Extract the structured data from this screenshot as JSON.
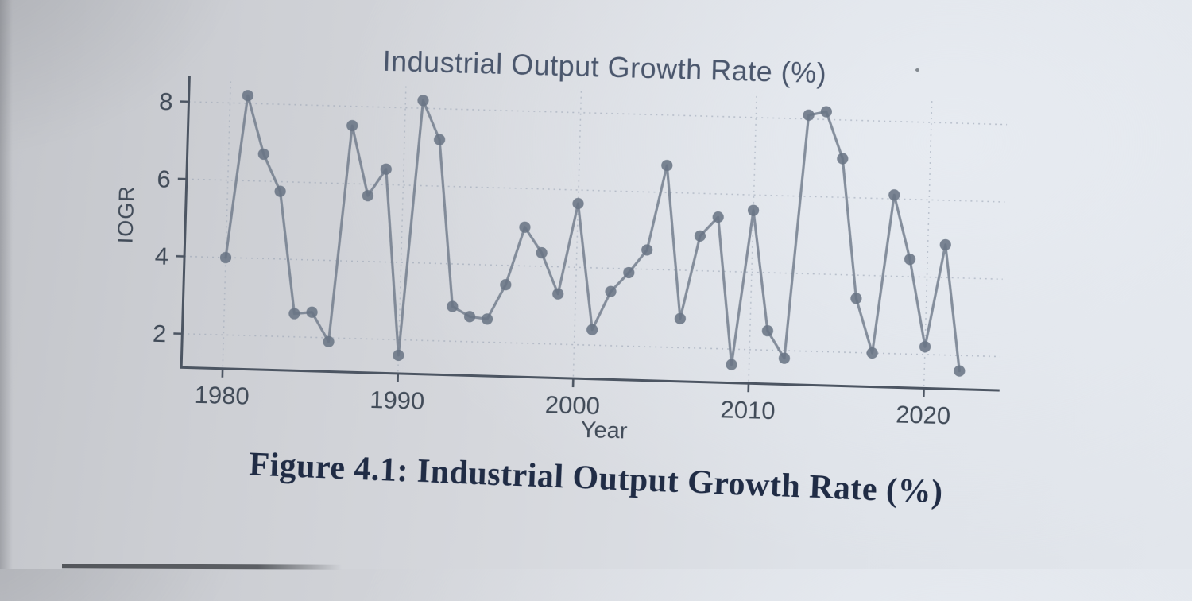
{
  "photo": {
    "caption": "Figure 4.1: Industrial Output Growth Rate (%)"
  },
  "chart_data": {
    "type": "line",
    "title": "Industrial Output Growth Rate (%)",
    "xlabel": "Year",
    "ylabel": "IOGR",
    "x": [
      1980,
      1981,
      1982,
      1983,
      1984,
      1985,
      1986,
      1987,
      1988,
      1989,
      1990,
      1991,
      1992,
      1993,
      1994,
      1995,
      1996,
      1997,
      1998,
      1999,
      2000,
      2001,
      2002,
      2003,
      2004,
      2005,
      2006,
      2007,
      2008,
      2009,
      2010,
      2011,
      2012,
      2013,
      2014,
      2015,
      2016,
      2017,
      2018,
      2019,
      2020,
      2021,
      2022
    ],
    "values": [
      4.0,
      8.2,
      6.7,
      5.75,
      2.6,
      2.65,
      1.9,
      7.5,
      5.7,
      6.4,
      1.6,
      8.2,
      7.2,
      2.9,
      2.65,
      2.6,
      3.5,
      5.0,
      4.35,
      3.3,
      5.65,
      2.4,
      3.4,
      3.9,
      4.5,
      6.7,
      2.75,
      4.9,
      5.4,
      1.6,
      5.6,
      2.5,
      1.8,
      8.1,
      8.2,
      7.0,
      3.4,
      2.0,
      6.1,
      4.45,
      2.2,
      4.85,
      1.6
    ],
    "xticks": [
      1980,
      1990,
      2000,
      2010,
      2020
    ],
    "yticks": [
      2,
      4,
      6,
      8
    ],
    "xlim": [
      1978.6,
      2024.3
    ],
    "ylim": [
      1.15,
      8.7
    ],
    "grid": true,
    "legend": false,
    "marker": "circle",
    "colors": {
      "line": "#6f7a8a",
      "marker": "#6a7585",
      "grid": "#98a2b2",
      "axis": "#4c5562",
      "tick_text": "#414b58",
      "title_text": "#4a566c",
      "caption_text": "#202c45",
      "paper": "#d6d9de"
    }
  }
}
